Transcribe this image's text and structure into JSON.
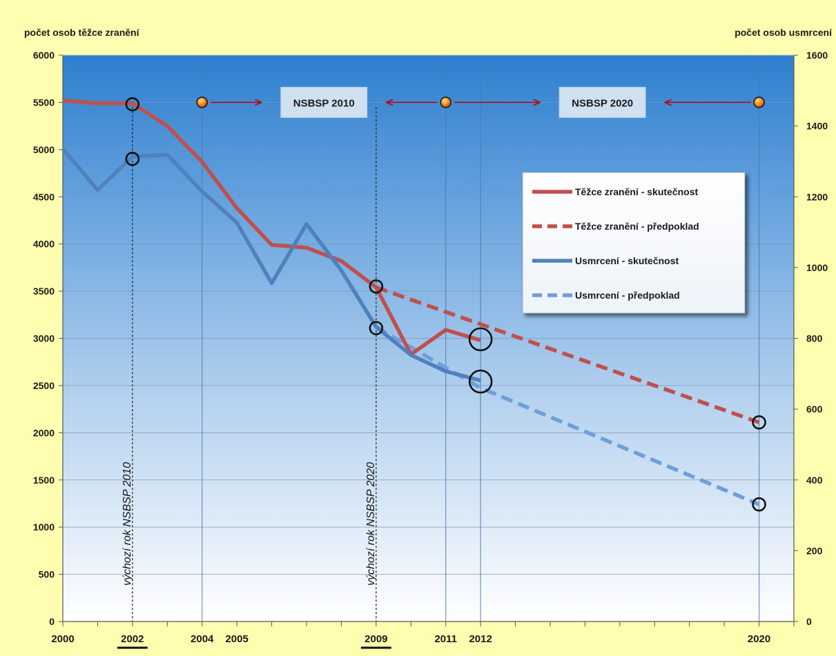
{
  "chart_data": {
    "type": "line",
    "ylabel_left": "počet osob těžce zranění",
    "ylabel_right": "počet osob usmrcení",
    "ylim_left": [
      0,
      6000
    ],
    "ylim_right": [
      0,
      1600
    ],
    "yticks_left": [
      0,
      500,
      1000,
      1500,
      2000,
      2500,
      3000,
      3500,
      4000,
      4500,
      5000,
      5500,
      6000
    ],
    "yticks_right": [
      0,
      200,
      400,
      600,
      800,
      1000,
      1200,
      1400,
      1600
    ],
    "xlim": [
      2000,
      2021
    ],
    "x_tick_labels": [
      {
        "year": 2000,
        "label": "2000",
        "underline": false
      },
      {
        "year": 2002,
        "label": "2002",
        "underline": true
      },
      {
        "year": 2004,
        "label": "2004",
        "underline": false
      },
      {
        "year": 2005,
        "label": "2005",
        "underline": false
      },
      {
        "year": 2009,
        "label": "2009",
        "underline": true
      },
      {
        "year": 2011,
        "label": "2011",
        "underline": false
      },
      {
        "year": 2012,
        "label": "2012",
        "underline": false
      },
      {
        "year": 2020,
        "label": "2020",
        "underline": false
      }
    ],
    "vertical_lines": [
      2004,
      2011,
      2012,
      2020
    ],
    "baseline_markers": [
      {
        "year": 2002,
        "label": "výchozí rok NSBSP 2010"
      },
      {
        "year": 2009,
        "label": "výchozí rok NSBSP 2020"
      }
    ],
    "series": [
      {
        "name": "Těžce zranění - skutečnost",
        "axis": "left",
        "color": "#c0504d",
        "style": "solid",
        "x": [
          2000,
          2001,
          2002,
          2003,
          2004,
          2005,
          2006,
          2007,
          2008,
          2009,
          2010,
          2011,
          2012
        ],
        "values": [
          5520,
          5490,
          5490,
          5250,
          4870,
          4380,
          3990,
          3960,
          3820,
          3540,
          2830,
          3090,
          2980
        ]
      },
      {
        "name": "Těžce zranění - předpoklad",
        "axis": "left",
        "color": "#c0504d",
        "style": "dashed",
        "x": [
          2009,
          2020
        ],
        "values": [
          3540,
          2110
        ]
      },
      {
        "name": "Usmrcení -  skutečnost",
        "axis": "right",
        "color": "#4f81bd",
        "style": "solid",
        "x": [
          2000,
          2001,
          2002,
          2003,
          2004,
          2005,
          2006,
          2007,
          2008,
          2009,
          2010,
          2011,
          2012
        ],
        "values": [
          1336,
          1219,
          1314,
          1319,
          1215,
          1127,
          956,
          1123,
          992,
          832,
          753,
          707,
          681
        ]
      },
      {
        "name": "Usmrcení - předpoklad",
        "axis": "right",
        "color": "#6f9fd8",
        "style": "dashed",
        "x": [
          2009,
          2012,
          2020
        ],
        "values": [
          832,
          660,
          331
        ]
      }
    ],
    "circle_markers": [
      {
        "year": 2002,
        "axis": "left",
        "value": 5480,
        "size": "small"
      },
      {
        "year": 2002,
        "axis": "right",
        "value": 1307,
        "size": "small"
      },
      {
        "year": 2009,
        "axis": "left",
        "value": 3550,
        "size": "small"
      },
      {
        "year": 2009,
        "axis": "right",
        "value": 829,
        "size": "small"
      },
      {
        "year": 2012,
        "axis": "left",
        "value": 2990,
        "size": "large"
      },
      {
        "year": 2012,
        "axis": "right",
        "value": 678,
        "size": "large"
      },
      {
        "year": 2020,
        "axis": "left",
        "value": 2110,
        "size": "small"
      },
      {
        "year": 2020,
        "axis": "right",
        "value": 331,
        "size": "small"
      }
    ],
    "dot_markers": [
      {
        "year": 2004,
        "value": 5500
      },
      {
        "year": 2011,
        "value": 5500
      },
      {
        "year": 2020,
        "value": 5500
      }
    ],
    "periods": [
      {
        "label": "NSBSP 2010",
        "from": 2004,
        "to": 2011
      },
      {
        "label": "NSBSP 2020",
        "from": 2011,
        "to": 2020
      }
    ],
    "legend": {
      "position": "right",
      "entries": [
        {
          "label": "Těžce zranění - skutečnost",
          "color": "#c0504d",
          "style": "solid"
        },
        {
          "label": "Těžce zranění - předpoklad",
          "color": "#c0504d",
          "style": "dashed"
        },
        {
          "label": "Usmrcení -  skutečnost",
          "color": "#4f81bd",
          "style": "solid"
        },
        {
          "label": "Usmrcení - předpoklad",
          "color": "#6f9fd8",
          "style": "dashed"
        }
      ]
    },
    "grid": true,
    "colors": {
      "background": "#fffdb0",
      "plot_top": "#2e7fcf",
      "plot_bottom": "#ffffff",
      "arrow": "#c00000"
    }
  }
}
